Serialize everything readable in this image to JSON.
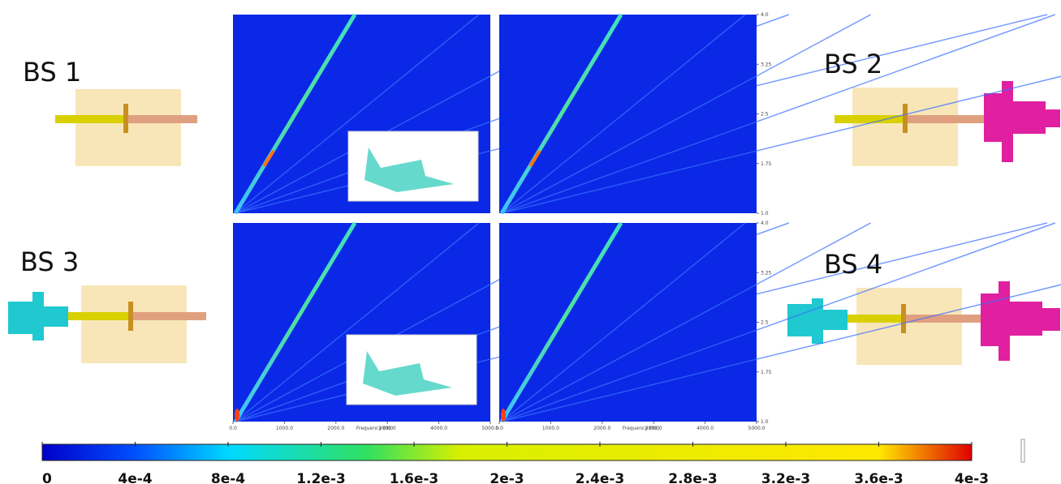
{
  "chart_data": {
    "type": "spectrogram",
    "panels": [
      {
        "label": "BS 1"
      },
      {
        "label": "BS 2"
      },
      {
        "label": "BS 3"
      },
      {
        "label": "BS 4"
      }
    ],
    "xlabel": "Frequency (Hz)",
    "xlim": [
      0,
      5000
    ],
    "xticks": [
      {
        "value": 0,
        "label": "0.0"
      },
      {
        "value": 1000,
        "label": "1000.0"
      },
      {
        "value": 2000,
        "label": "2000.0"
      },
      {
        "value": 3000,
        "label": "3000.0"
      },
      {
        "value": 4000,
        "label": "4000.0"
      },
      {
        "value": 5000,
        "label": "5000.0"
      }
    ],
    "ylim": [
      1,
      4
    ],
    "yticks": [
      {
        "value": 1,
        "label": "1.0"
      },
      1.75,
      2.5,
      3.25,
      {
        "value": 4,
        "label": "4.0"
      }
    ],
    "colorbar": {
      "lim": [
        0,
        0.004
      ],
      "ticks": [
        0,
        {
          "value": 0.0004,
          "label": "4e-4"
        },
        {
          "value": 0.0008,
          "label": "8e-4"
        },
        {
          "value": 0.0012,
          "label": "1.2e-3"
        },
        {
          "value": 0.0016,
          "label": "1.6e-3"
        },
        {
          "value": 0.002,
          "label": "2e-3"
        },
        {
          "value": 0.0024,
          "label": "2.4e-3"
        },
        {
          "value": 0.0028,
          "label": "2.8e-3"
        },
        {
          "value": 0.0032,
          "label": "3.2e-3"
        },
        {
          "value": 0.0036,
          "label": "3.6e-3"
        },
        {
          "value": 0.004,
          "label": "4e-3"
        }
      ]
    }
  }
}
